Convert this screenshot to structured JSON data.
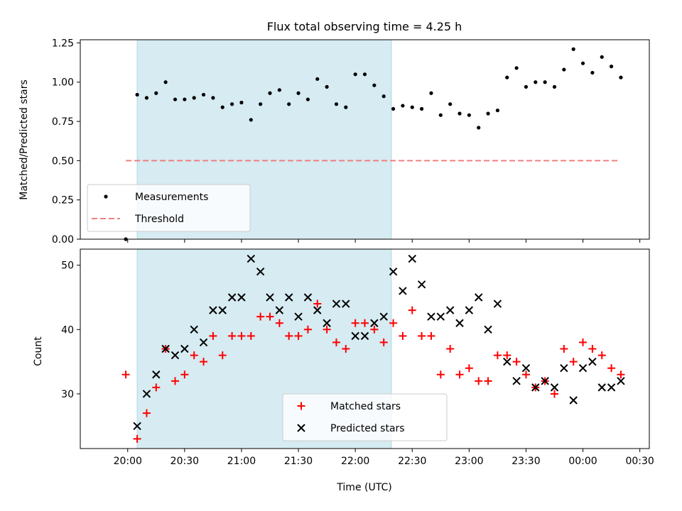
{
  "figure": {
    "title": "Flux total observing time = 4.25 h",
    "x_tick_labels": [
      "20:00",
      "20:30",
      "21:00",
      "21:30",
      "22:00",
      "22:30",
      "23:00",
      "23:30",
      "00:00",
      "00:30"
    ],
    "colors": {
      "shade": "#add8e6",
      "measure": "#000000",
      "threshold": "#f08080",
      "matched": "#ff0000",
      "predicted": "#000000"
    }
  },
  "chart_data": [
    {
      "type": "scatter",
      "ylabel": "Matched/Predicted stars",
      "ylim": [
        0,
        1.27
      ],
      "yticks": [
        0.0,
        0.25,
        0.5,
        0.75,
        1.0,
        1.25
      ],
      "ytick_labels": [
        "0.00",
        "0.25",
        "0.50",
        "0.75",
        "1.00",
        "1.25"
      ],
      "shaded_span": [
        "20:05",
        "22:19"
      ],
      "legend": {
        "position": "lower-left",
        "entries": [
          "Measurements",
          "Threshold"
        ]
      },
      "series": [
        {
          "name": "Measurements",
          "marker": "dot",
          "points": [
            [
              "19:59",
              0.0
            ],
            [
              "20:05",
              0.92
            ],
            [
              "20:10",
              0.9
            ],
            [
              "20:15",
              0.93
            ],
            [
              "20:20",
              1.0
            ],
            [
              "20:25",
              0.89
            ],
            [
              "20:30",
              0.89
            ],
            [
              "20:35",
              0.9
            ],
            [
              "20:40",
              0.92
            ],
            [
              "20:45",
              0.9
            ],
            [
              "20:50",
              0.84
            ],
            [
              "20:55",
              0.86
            ],
            [
              "21:00",
              0.87
            ],
            [
              "21:05",
              0.76
            ],
            [
              "21:10",
              0.86
            ],
            [
              "21:15",
              0.93
            ],
            [
              "21:20",
              0.95
            ],
            [
              "21:25",
              0.86
            ],
            [
              "21:30",
              0.93
            ],
            [
              "21:35",
              0.89
            ],
            [
              "21:40",
              1.02
            ],
            [
              "21:45",
              0.97
            ],
            [
              "21:50",
              0.86
            ],
            [
              "21:55",
              0.84
            ],
            [
              "22:00",
              1.05
            ],
            [
              "22:05",
              1.05
            ],
            [
              "22:10",
              0.98
            ],
            [
              "22:15",
              0.91
            ],
            [
              "22:20",
              0.83
            ],
            [
              "22:25",
              0.85
            ],
            [
              "22:30",
              0.84
            ],
            [
              "22:35",
              0.83
            ],
            [
              "22:40",
              0.93
            ],
            [
              "22:45",
              0.79
            ],
            [
              "22:50",
              0.86
            ],
            [
              "22:55",
              0.8
            ],
            [
              "23:00",
              0.79
            ],
            [
              "23:05",
              0.71
            ],
            [
              "23:10",
              0.8
            ],
            [
              "23:15",
              0.82
            ],
            [
              "23:20",
              1.03
            ],
            [
              "23:25",
              1.09
            ],
            [
              "23:30",
              0.97
            ],
            [
              "23:35",
              1.0
            ],
            [
              "23:40",
              1.0
            ],
            [
              "23:45",
              0.97
            ],
            [
              "23:50",
              1.08
            ],
            [
              "23:55",
              1.21
            ],
            [
              "00:00",
              1.12
            ],
            [
              "00:05",
              1.06
            ],
            [
              "00:10",
              1.16
            ],
            [
              "00:15",
              1.1
            ],
            [
              "00:20",
              1.03
            ]
          ]
        },
        {
          "name": "Threshold",
          "style": "dashed",
          "points": [
            [
              "19:59",
              0.5
            ],
            [
              "00:19",
              0.5
            ]
          ]
        }
      ]
    },
    {
      "type": "scatter",
      "ylabel": "Count",
      "xlabel": "Time (UTC)",
      "ylim": [
        21.5,
        52.5
      ],
      "yticks": [
        30,
        40,
        50
      ],
      "ytick_labels": [
        "30",
        "40",
        "50"
      ],
      "shaded_span": [
        "20:05",
        "22:19"
      ],
      "legend": {
        "position": "lower-center",
        "entries": [
          "Matched stars",
          "Predicted stars"
        ]
      },
      "series": [
        {
          "name": "Matched stars",
          "marker": "plus",
          "points": [
            [
              "19:59",
              33
            ],
            [
              "20:05",
              23
            ],
            [
              "20:10",
              27
            ],
            [
              "20:15",
              31
            ],
            [
              "20:20",
              37
            ],
            [
              "20:25",
              32
            ],
            [
              "20:30",
              33
            ],
            [
              "20:35",
              36
            ],
            [
              "20:40",
              35
            ],
            [
              "20:45",
              39
            ],
            [
              "20:50",
              36
            ],
            [
              "20:55",
              39
            ],
            [
              "21:00",
              39
            ],
            [
              "21:05",
              39
            ],
            [
              "21:10",
              42
            ],
            [
              "21:15",
              42
            ],
            [
              "21:20",
              41
            ],
            [
              "21:25",
              39
            ],
            [
              "21:30",
              39
            ],
            [
              "21:35",
              40
            ],
            [
              "21:40",
              44
            ],
            [
              "21:45",
              40
            ],
            [
              "21:50",
              38
            ],
            [
              "21:55",
              37
            ],
            [
              "22:00",
              41
            ],
            [
              "22:05",
              41
            ],
            [
              "22:10",
              40
            ],
            [
              "22:15",
              38
            ],
            [
              "22:20",
              41
            ],
            [
              "22:25",
              39
            ],
            [
              "22:30",
              43
            ],
            [
              "22:35",
              39
            ],
            [
              "22:40",
              39
            ],
            [
              "22:45",
              33
            ],
            [
              "22:50",
              37
            ],
            [
              "22:55",
              33
            ],
            [
              "23:00",
              34
            ],
            [
              "23:05",
              32
            ],
            [
              "23:10",
              32
            ],
            [
              "23:15",
              36
            ],
            [
              "23:20",
              36
            ],
            [
              "23:25",
              35
            ],
            [
              "23:30",
              33
            ],
            [
              "23:35",
              31
            ],
            [
              "23:40",
              32
            ],
            [
              "23:45",
              30
            ],
            [
              "23:50",
              37
            ],
            [
              "23:55",
              35
            ],
            [
              "00:00",
              38
            ],
            [
              "00:05",
              37
            ],
            [
              "00:10",
              36
            ],
            [
              "00:15",
              34
            ],
            [
              "00:20",
              33
            ]
          ]
        },
        {
          "name": "Predicted stars",
          "marker": "x",
          "points": [
            [
              "20:05",
              25
            ],
            [
              "20:10",
              30
            ],
            [
              "20:15",
              33
            ],
            [
              "20:20",
              37
            ],
            [
              "20:25",
              36
            ],
            [
              "20:30",
              37
            ],
            [
              "20:35",
              40
            ],
            [
              "20:40",
              38
            ],
            [
              "20:45",
              43
            ],
            [
              "20:50",
              43
            ],
            [
              "20:55",
              45
            ],
            [
              "21:00",
              45
            ],
            [
              "21:05",
              51
            ],
            [
              "21:10",
              49
            ],
            [
              "21:15",
              45
            ],
            [
              "21:20",
              43
            ],
            [
              "21:25",
              45
            ],
            [
              "21:30",
              42
            ],
            [
              "21:35",
              45
            ],
            [
              "21:40",
              43
            ],
            [
              "21:45",
              41
            ],
            [
              "21:50",
              44
            ],
            [
              "21:55",
              44
            ],
            [
              "22:00",
              39
            ],
            [
              "22:05",
              39
            ],
            [
              "22:10",
              41
            ],
            [
              "22:15",
              42
            ],
            [
              "22:20",
              49
            ],
            [
              "22:25",
              46
            ],
            [
              "22:30",
              51
            ],
            [
              "22:35",
              47
            ],
            [
              "22:40",
              42
            ],
            [
              "22:45",
              42
            ],
            [
              "22:50",
              43
            ],
            [
              "22:55",
              41
            ],
            [
              "23:00",
              43
            ],
            [
              "23:05",
              45
            ],
            [
              "23:10",
              40
            ],
            [
              "23:15",
              44
            ],
            [
              "23:20",
              35
            ],
            [
              "23:25",
              32
            ],
            [
              "23:30",
              34
            ],
            [
              "23:35",
              31
            ],
            [
              "23:40",
              32
            ],
            [
              "23:45",
              31
            ],
            [
              "23:50",
              34
            ],
            [
              "23:55",
              29
            ],
            [
              "00:00",
              34
            ],
            [
              "00:05",
              35
            ],
            [
              "00:10",
              31
            ],
            [
              "00:15",
              31
            ],
            [
              "00:20",
              32
            ]
          ]
        }
      ]
    }
  ]
}
